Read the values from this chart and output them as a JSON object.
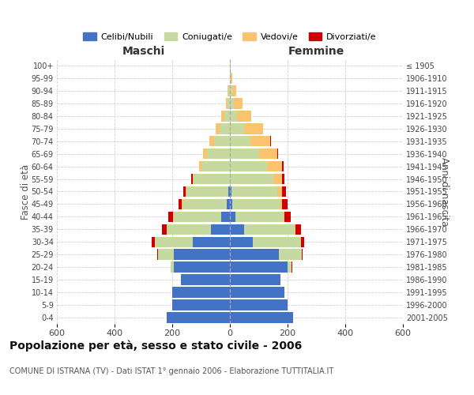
{
  "age_groups": [
    "0-4",
    "5-9",
    "10-14",
    "15-19",
    "20-24",
    "25-29",
    "30-34",
    "35-39",
    "40-44",
    "45-49",
    "50-54",
    "55-59",
    "60-64",
    "65-69",
    "70-74",
    "75-79",
    "80-84",
    "85-89",
    "90-94",
    "95-99",
    "100+"
  ],
  "birth_years": [
    "2001-2005",
    "1996-2000",
    "1991-1995",
    "1986-1990",
    "1981-1985",
    "1976-1980",
    "1971-1975",
    "1966-1970",
    "1961-1965",
    "1956-1960",
    "1951-1955",
    "1946-1950",
    "1941-1945",
    "1936-1940",
    "1931-1935",
    "1926-1930",
    "1921-1925",
    "1916-1920",
    "1911-1915",
    "1906-1910",
    "≤ 1905"
  ],
  "male_celibi": [
    220,
    200,
    200,
    170,
    195,
    195,
    130,
    65,
    30,
    10,
    5,
    0,
    0,
    0,
    0,
    0,
    0,
    0,
    0,
    0,
    0
  ],
  "male_coniugati": [
    0,
    0,
    0,
    0,
    10,
    55,
    130,
    155,
    165,
    155,
    145,
    125,
    100,
    80,
    55,
    35,
    20,
    8,
    5,
    0,
    0
  ],
  "male_vedovi": [
    0,
    0,
    0,
    0,
    0,
    0,
    0,
    0,
    1,
    2,
    3,
    5,
    8,
    12,
    15,
    15,
    10,
    5,
    2,
    0,
    0
  ],
  "male_divorziati": [
    0,
    0,
    0,
    0,
    1,
    3,
    10,
    15,
    18,
    12,
    8,
    5,
    0,
    0,
    0,
    0,
    0,
    0,
    0,
    0,
    0
  ],
  "female_celibi": [
    220,
    200,
    190,
    175,
    200,
    170,
    80,
    50,
    20,
    8,
    5,
    0,
    0,
    0,
    0,
    0,
    0,
    0,
    0,
    0,
    0
  ],
  "female_coniugati": [
    0,
    0,
    0,
    0,
    15,
    80,
    165,
    175,
    165,
    165,
    160,
    150,
    130,
    100,
    70,
    50,
    25,
    15,
    8,
    2,
    0
  ],
  "female_vedovi": [
    0,
    0,
    0,
    0,
    0,
    0,
    1,
    2,
    5,
    8,
    15,
    30,
    50,
    65,
    70,
    65,
    50,
    30,
    15,
    5,
    2
  ],
  "female_divorziati": [
    0,
    0,
    0,
    0,
    1,
    3,
    12,
    20,
    20,
    18,
    15,
    10,
    5,
    3,
    2,
    0,
    0,
    0,
    0,
    0,
    0
  ],
  "color_celibi": "#4472c4",
  "color_coniugati": "#c5d9a0",
  "color_vedovi": "#fac36d",
  "color_divorziati": "#cc0000",
  "title": "Popolazione per età, sesso e stato civile - 2006",
  "subtitle": "COMUNE DI ISTRANA (TV) - Dati ISTAT 1° gennaio 2006 - Elaborazione TUTTITALIA.IT",
  "label_maschi": "Maschi",
  "label_femmine": "Femmine",
  "ylabel_left": "Fasce di età",
  "ylabel_right": "Anni di nascita",
  "xlim": 600,
  "background_color": "#ffffff",
  "grid_color": "#cccccc",
  "legend_labels": [
    "Celibi/Nubili",
    "Coniugati/e",
    "Vedovi/e",
    "Divorziati/e"
  ]
}
